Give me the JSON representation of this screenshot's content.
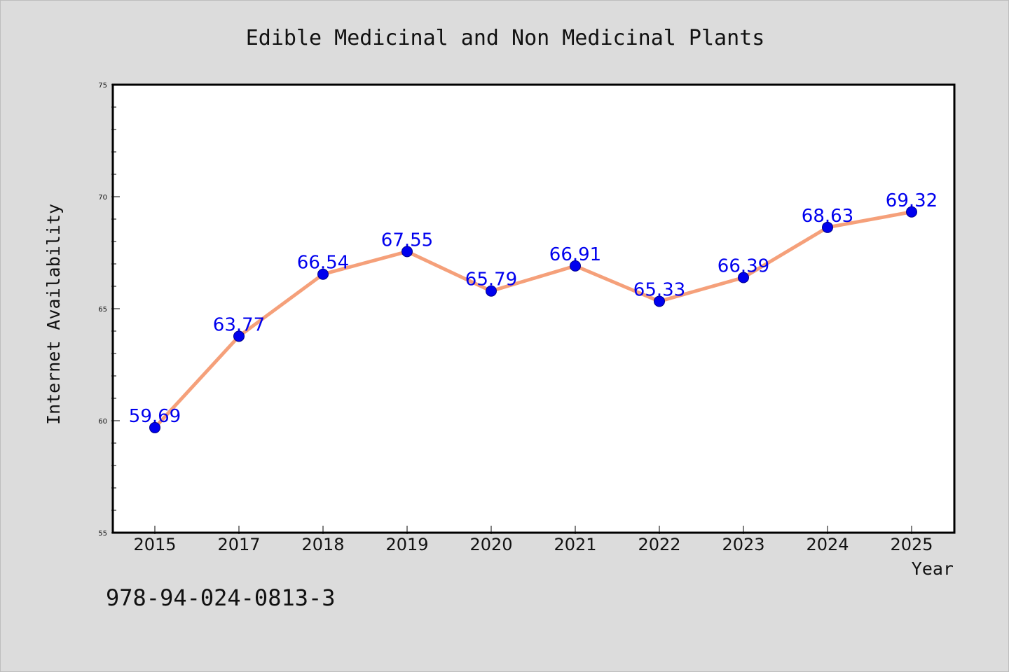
{
  "figure": {
    "background": "#dcdcdc",
    "footer_text": "978-94-024-0813-3"
  },
  "chart_data": {
    "type": "line",
    "title": "Edible Medicinal and Non Medicinal Plants",
    "xlabel": "Year",
    "ylabel": "Internet Availability",
    "categories": [
      "2015",
      "2017",
      "2018",
      "2019",
      "2020",
      "2021",
      "2022",
      "2023",
      "2024",
      "2025"
    ],
    "series": [
      {
        "values": [
          59.69,
          63.77,
          66.54,
          67.55,
          65.79,
          66.91,
          65.33,
          66.39,
          68.63,
          69.32
        ],
        "line_color": "#f5a07a",
        "marker_color": "#0000ee",
        "label_color": "#0000ee"
      }
    ],
    "data_labels": [
      "59.69",
      "63.77",
      "66.54",
      "67.55",
      "65.79",
      "66.91",
      "65.33",
      "66.39",
      "68.63",
      "69.32"
    ],
    "ylim": [
      55,
      75
    ],
    "yticks": [
      55,
      60,
      65,
      70,
      75
    ],
    "y_minor_step": 1,
    "grid": false,
    "legend": "none"
  }
}
